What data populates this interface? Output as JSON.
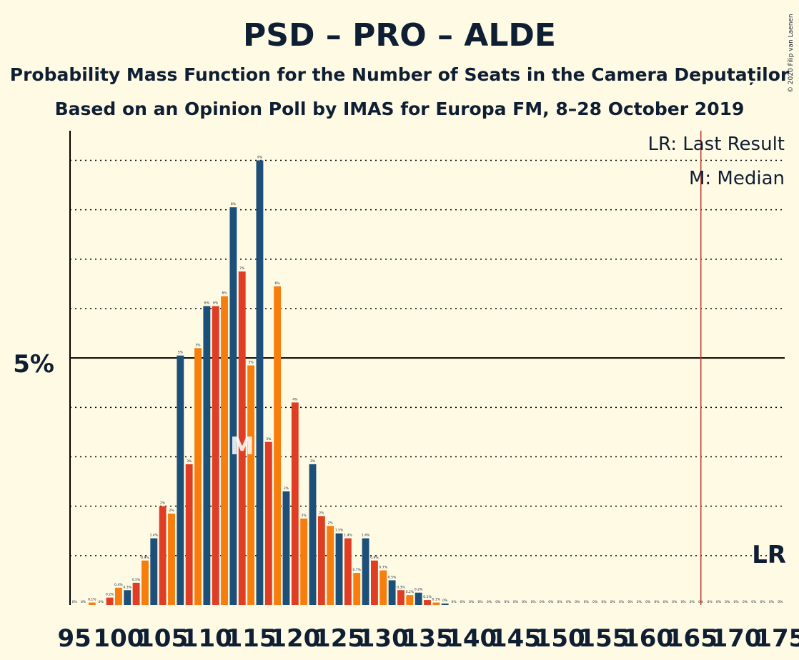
{
  "chart_data": {
    "type": "bar",
    "title": "PSD – PRO – ALDE",
    "subtitle": "Probability Mass Function for the Number of Seats in the Camera Deputaților",
    "subtitle2": "Based on an Opinion Poll by IMAS for Europa FM, 8–28 October 2019",
    "copyright": "© 2020 Filip van Laenen",
    "legend": {
      "lr": "LR: Last Result",
      "median": "M: Median",
      "placement": "top-right"
    },
    "lr_label": "LR",
    "median_label": "M",
    "median_seat": 114,
    "last_result_seat": 166,
    "ytick_label": "5%",
    "ylim": [
      0,
      9.6
    ],
    "gridlines": [
      1,
      2,
      3,
      4,
      5,
      6,
      7,
      8,
      9
    ],
    "solid_line": 5,
    "xtick_labels": [
      "95",
      "100",
      "105",
      "110",
      "115",
      "120",
      "125",
      "130",
      "135",
      "140",
      "145",
      "150",
      "155",
      "160",
      "165",
      "170",
      "175"
    ],
    "colors": {
      "blue": "#1d5079",
      "red": "#e03d25",
      "orange": "#f77e0d",
      "lr_line": "#c0392b"
    },
    "x": [
      95,
      96,
      97,
      98,
      99,
      100,
      101,
      102,
      103,
      104,
      105,
      106,
      107,
      108,
      109,
      110,
      111,
      112,
      113,
      114,
      115,
      116,
      117,
      118,
      119,
      120,
      121,
      122,
      123,
      124,
      125,
      126,
      127,
      128,
      129,
      130,
      131,
      132,
      133,
      134,
      135,
      136,
      137,
      138,
      139,
      140,
      141,
      142,
      143,
      144,
      145,
      146,
      147,
      148,
      149,
      150,
      151,
      152,
      153,
      154,
      155,
      156,
      157,
      158,
      159,
      160,
      161,
      162,
      163,
      164,
      165,
      166,
      167,
      168,
      169,
      170,
      171,
      172,
      173,
      174,
      175
    ],
    "values": [
      0,
      0,
      0.05,
      0,
      0.15,
      0.35,
      0.3,
      0.45,
      0.9,
      1.35,
      2.0,
      1.85,
      5.05,
      2.85,
      5.2,
      6.05,
      6.05,
      6.25,
      8.05,
      6.75,
      4.85,
      9.0,
      3.3,
      6.45,
      2.3,
      4.1,
      1.75,
      2.85,
      1.8,
      1.6,
      1.45,
      1.35,
      0.65,
      1.35,
      0.9,
      0.7,
      0.5,
      0.3,
      0.2,
      0.25,
      0.1,
      0.05,
      0.03,
      0,
      0,
      0,
      0,
      0,
      0,
      0,
      0,
      0,
      0,
      0,
      0,
      0,
      0,
      0,
      0,
      0,
      0,
      0,
      0,
      0,
      0,
      0,
      0,
      0,
      0,
      0,
      0,
      0,
      0,
      0,
      0,
      0,
      0,
      0,
      0,
      0,
      0
    ],
    "data_labels": [
      "0%",
      "0%",
      "0.1%",
      "0%",
      "0.2%",
      "0.4%",
      "0.3%",
      "0.5%",
      "0.9%",
      "1.4%",
      "2%",
      "2%",
      "5%",
      "3%",
      "5%",
      "6%",
      "6%",
      "6%",
      "8%",
      "7%",
      "5%",
      "9%",
      "3%",
      "6%",
      "2%",
      "4%",
      "2%",
      "3%",
      "2%",
      "2%",
      "1.5%",
      "1.4%",
      "0.7%",
      "1.4%",
      "0.9%",
      "0.7%",
      "0.5%",
      "0.3%",
      "0.2%",
      "0.2%",
      "0.1%",
      "0.1%",
      "0%",
      "0%",
      "0%",
      "0%",
      "0%",
      "0%",
      "0%",
      "0%",
      "0%",
      "0%",
      "0%",
      "0%",
      "0%",
      "0%",
      "0%",
      "0%",
      "0%",
      "0%",
      "0%",
      "0%",
      "0%",
      "0%",
      "0%",
      "0%",
      "0%",
      "0%",
      "0%",
      "0%",
      "0%",
      "0%",
      "0%",
      "0%",
      "0%",
      "0%",
      "0%",
      "0%",
      "0%",
      "0%",
      "0%"
    ],
    "bar_colors": [
      "blue",
      "red",
      "orange"
    ]
  }
}
